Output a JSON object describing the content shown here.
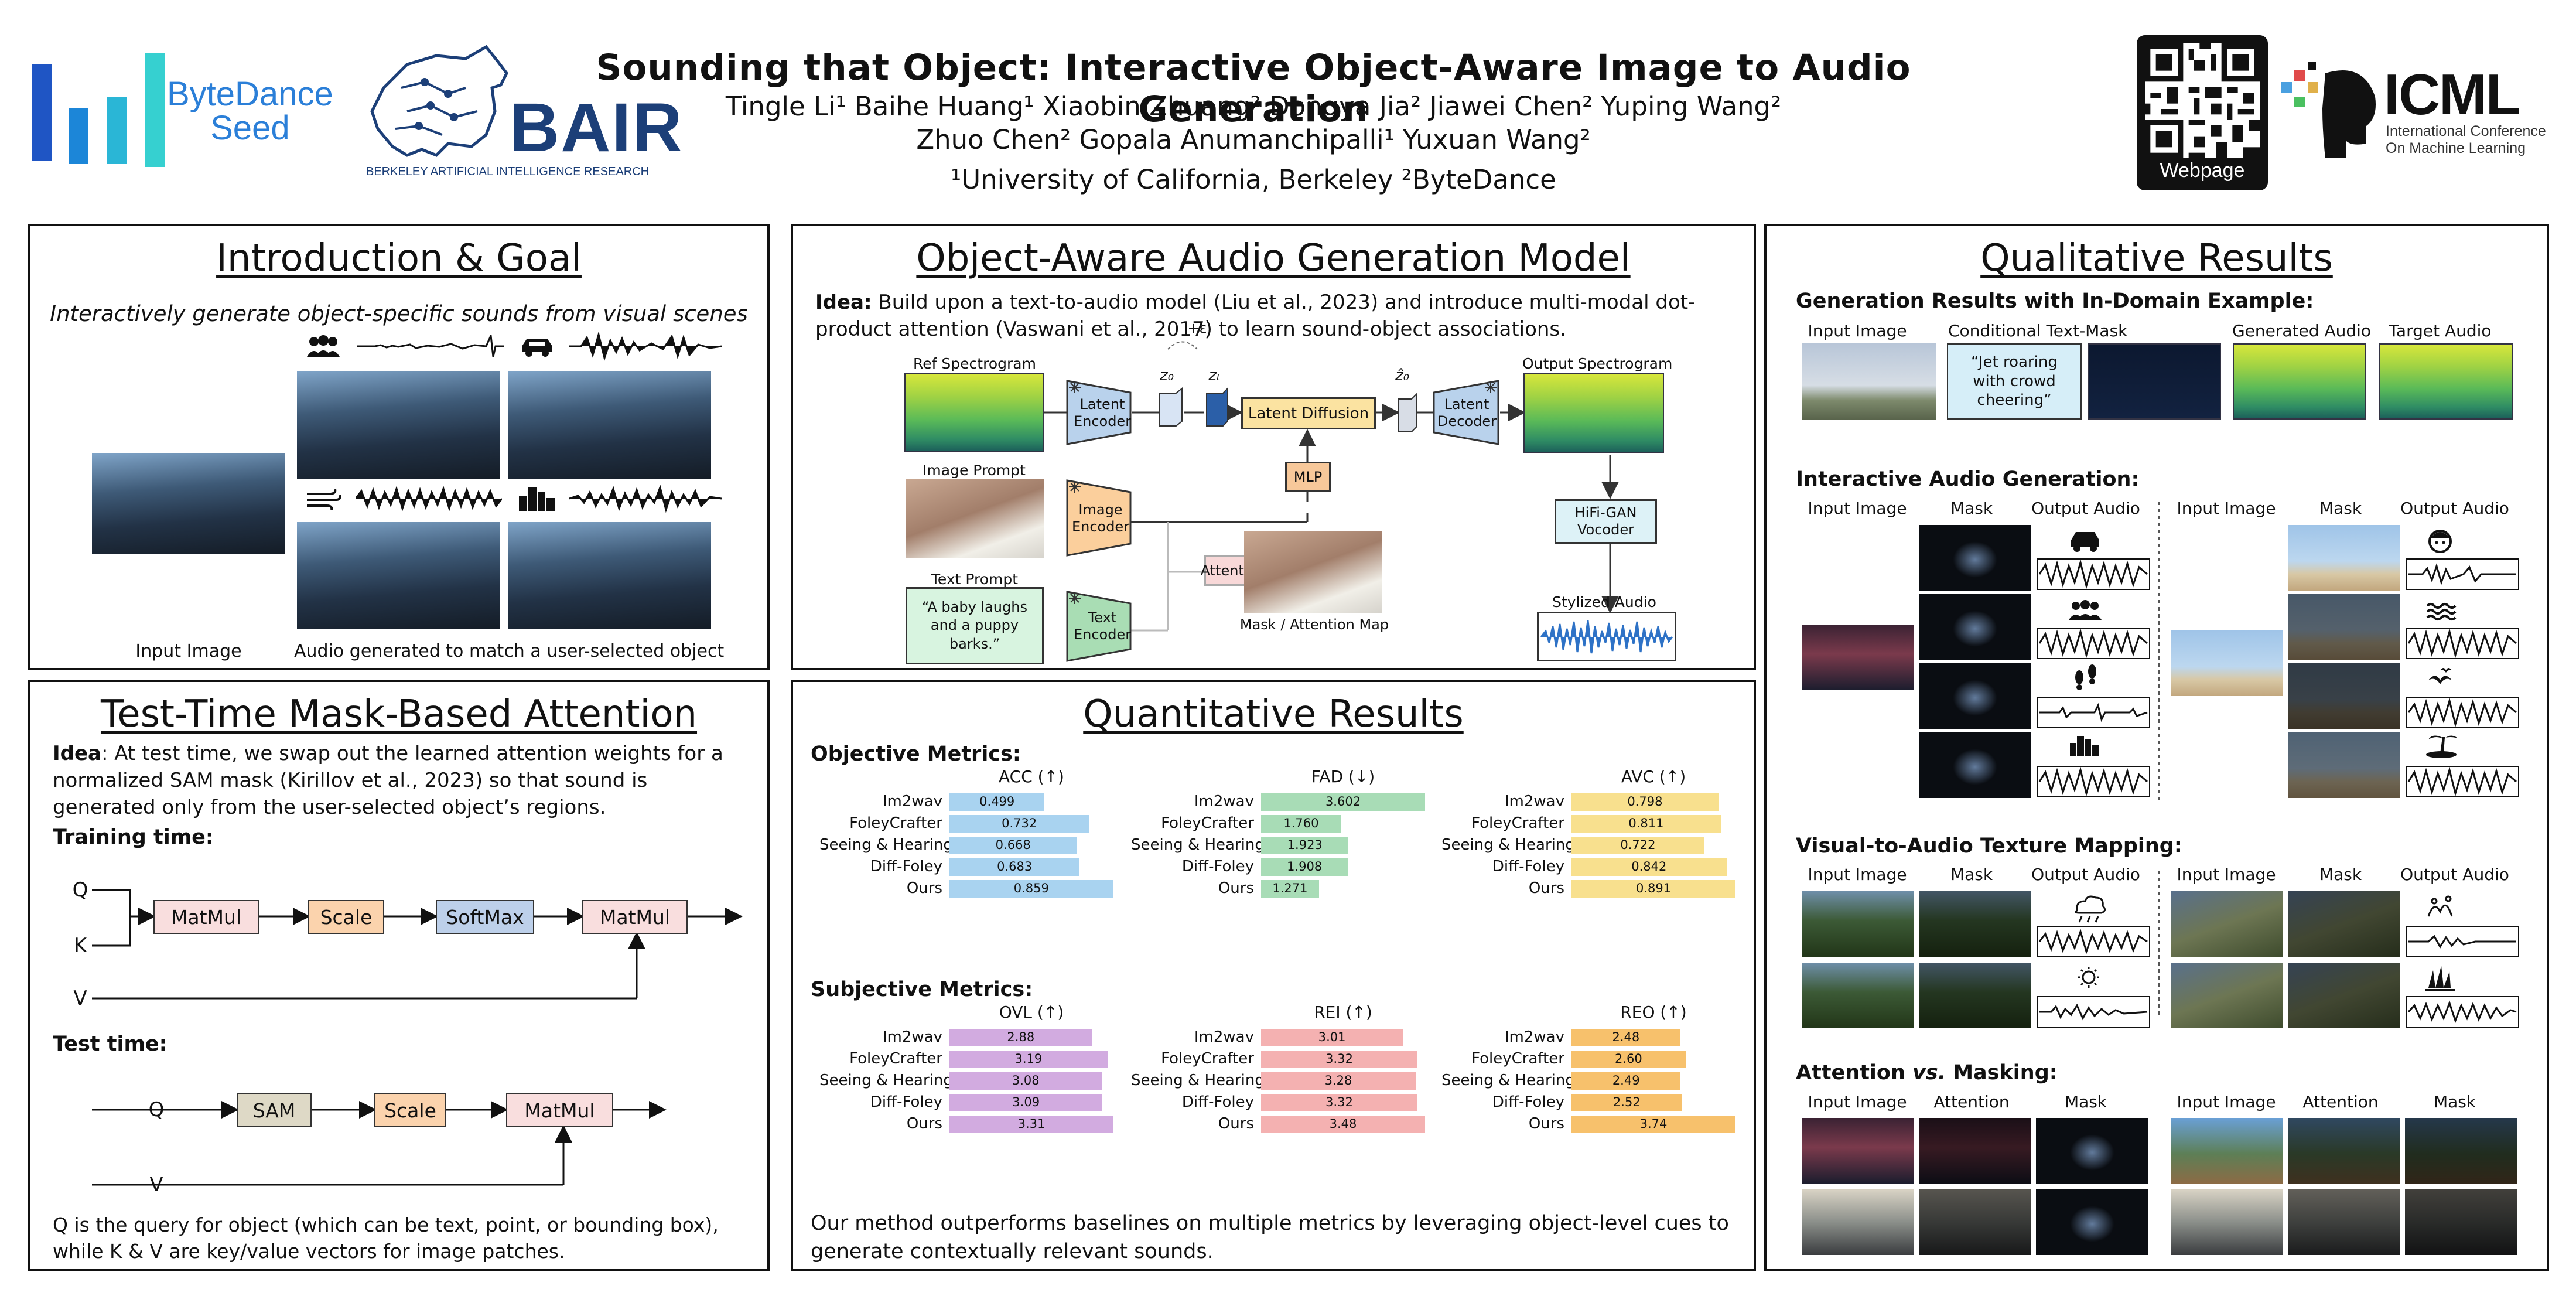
{
  "header": {
    "title": "Sounding that Object: Interactive Object-Aware Image to Audio Generation",
    "authors_line1": "Tingle Li¹   Baihe Huang¹   Xiaobin Zhuang²   Dongya Jia²   Jiawei Chen²   Yuping Wang²",
    "authors_line2": "Zhuo Chen²   Gopala Anumanchipalli¹   Yuxuan Wang²",
    "affiliations": "¹University of California, Berkeley     ²ByteDance",
    "logo_bytedance_line1": "ByteDance",
    "logo_bytedance_line2": "Seed",
    "logo_bair": "BAIR",
    "logo_bair_sub": "BERKELEY ARTIFICIAL INTELLIGENCE RESEARCH",
    "qr_label": "Webpage",
    "logo_icml": "ICML",
    "logo_icml_sub1": "International Conference",
    "logo_icml_sub2": "On Machine Learning",
    "colors": {
      "bytedance": "#2b7fd8",
      "bair": "#1c3f78"
    }
  },
  "intro": {
    "title": "Introduction & Goal",
    "tagline": "Interactively generate object-specific sounds from visual scenes",
    "input_label": "Input Image",
    "output_label": "Audio generated to match a user-selected object",
    "icons": [
      "people-icon",
      "car-icon",
      "wind-icon",
      "city-icon"
    ]
  },
  "model": {
    "title": "Object-Aware Audio Generation Model",
    "idea_label": "Idea:",
    "idea_text": " Build upon a text-to-audio model (Liu et al., 2023) and introduce multi-modal dot-product attention (Vaswani et al., 2017) to learn sound-object associations.",
    "ref_spec": "Ref Spectrogram",
    "latent_encoder": "Latent Encoder",
    "z0": "z₀",
    "zt": "zₜ",
    "eps": "+ε",
    "latent_diffusion": "Latent Diffusion",
    "z0hat": "ẑ₀",
    "latent_decoder": "Latent Decoder",
    "output_spec": "Output Spectrogram",
    "image_prompt": "Image Prompt",
    "image_encoder": "Image Encoder",
    "mlp": "MLP",
    "attention": "Attention",
    "mask_map": "Mask / Attention Map",
    "hifigan": "HiFi-GAN Vocoder",
    "text_prompt": "Text Prompt",
    "text_prompt_value": "“A baby laughs and a puppy barks.”",
    "text_encoder": "Text Encoder",
    "stylized": "Stylized Audio"
  },
  "qualitative": {
    "title": "Qualitative Results",
    "gen_title": "Generation Results with In-Domain Example:",
    "gen_cols": [
      "Input Image",
      "Conditional Text-Mask",
      "Generated Audio",
      "Target Audio"
    ],
    "gen_text": "“Jet roaring with crowd cheering”",
    "inter_title": "Interactive Audio Generation:",
    "inter_cols": [
      "Input Image",
      "Mask",
      "Output Audio",
      "Input Image",
      "Mask",
      "Output Audio"
    ],
    "inter_icons_left": [
      "car-icon",
      "people-icon",
      "footsteps-icon",
      "city-icon"
    ],
    "inter_icons_right": [
      "child-face-icon",
      "waves-icon",
      "birds-icon",
      "palm-island-icon"
    ],
    "texture_title": "Visual-to-Audio Texture Mapping:",
    "texture_cols": [
      "Input Image",
      "Mask",
      "Output Audio",
      "Input Image",
      "Mask",
      "Output Audio"
    ],
    "texture_icons": [
      "rain-cloud-icon",
      "sun-icon",
      "splash-icon",
      "grass-icon"
    ],
    "attn_title_pre": "Attention ",
    "attn_title_vs": "vs.",
    "attn_title_post": " Masking:",
    "attn_cols": [
      "Input Image",
      "Attention",
      "Mask",
      "Input Image",
      "Attention",
      "Mask"
    ]
  },
  "testtime": {
    "title": "Test-Time Mask-Based Attention",
    "idea_label": "Idea",
    "idea_text": ": At test time, we swap out the learned attention weights for a normalized SAM mask (Kirillov et al., 2023) so that sound is generated only from the user-selected object’s regions.",
    "training_label": "Training time:",
    "q": "Q",
    "k": "K",
    "v": "V",
    "matmul": "MatMul",
    "scale": "Scale",
    "softmax": "SoftMax",
    "test_label": "Test time:",
    "sam": "SAM",
    "footer": "Q is the query for object (which can be text, point, or bounding box), while K & V are key/value vectors for image patches."
  },
  "quantitative": {
    "title": "Quantitative Results",
    "objective_label": "Objective Metrics:",
    "subjective_label": "Subjective Metrics:",
    "conclusion": "Our method outperforms baselines on multiple metrics by leveraging object-level cues to generate contextually relevant sounds."
  },
  "chart_data": [
    {
      "type": "bar",
      "title": "ACC (↑)",
      "categories": [
        "Im2wav",
        "FoleyCrafter",
        "Seeing & Hearing",
        "Diff-Foley",
        "Ours"
      ],
      "values": [
        0.499,
        0.732,
        0.668,
        0.683,
        0.859
      ],
      "xlim": [
        0,
        0.86
      ],
      "color": "#a9d3f0"
    },
    {
      "type": "bar",
      "title": "FAD (↓)",
      "categories": [
        "Im2wav",
        "FoleyCrafter",
        "Seeing & Hearing",
        "Diff-Foley",
        "Ours"
      ],
      "values": [
        3.602,
        1.76,
        1.923,
        1.908,
        1.271
      ],
      "xlim": [
        0,
        3.602
      ],
      "color": "#a8dcb6"
    },
    {
      "type": "bar",
      "title": "AVC (↑)",
      "categories": [
        "Im2wav",
        "FoleyCrafter",
        "Seeing & Hearing",
        "Diff-Foley",
        "Ours"
      ],
      "values": [
        0.798,
        0.811,
        0.722,
        0.842,
        0.891
      ],
      "xlim": [
        0,
        0.891
      ],
      "color": "#f8e08e"
    },
    {
      "type": "bar",
      "title": "OVL (↑)",
      "categories": [
        "Im2wav",
        "FoleyCrafter",
        "Seeing & Hearing",
        "Diff-Foley",
        "Ours"
      ],
      "values": [
        2.88,
        3.19,
        3.08,
        3.09,
        3.31
      ],
      "xlim": [
        0,
        3.31
      ],
      "color": "#d2abe0"
    },
    {
      "type": "bar",
      "title": "REI (↑)",
      "categories": [
        "Im2wav",
        "FoleyCrafter",
        "Seeing & Hearing",
        "Diff-Foley",
        "Ours"
      ],
      "values": [
        3.01,
        3.32,
        3.28,
        3.32,
        3.48
      ],
      "xlim": [
        0,
        3.48
      ],
      "color": "#f4b1b1"
    },
    {
      "type": "bar",
      "title": "REO (↑)",
      "categories": [
        "Im2wav",
        "FoleyCrafter",
        "Seeing & Hearing",
        "Diff-Foley",
        "Ours"
      ],
      "values": [
        2.48,
        2.6,
        2.49,
        2.52,
        3.74
      ],
      "xlim": [
        0,
        3.74
      ],
      "color": "#f7c16c"
    }
  ]
}
